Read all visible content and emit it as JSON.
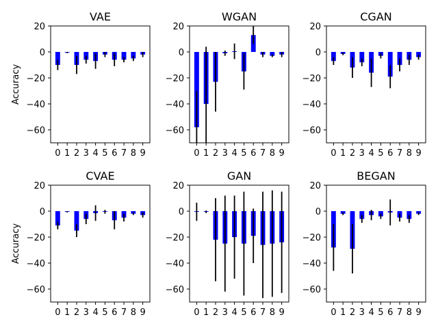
{
  "figure": {
    "name": "accuracy-bar-grid"
  },
  "chart_data": [
    {
      "type": "bar",
      "title": "VAE",
      "ylabel": "Accuracy",
      "xlabel": "",
      "ylim": [
        -70,
        20
      ],
      "yticks": [
        20,
        0,
        -20,
        -40,
        -60
      ],
      "categories": [
        "0",
        "1",
        "2",
        "3",
        "4",
        "5",
        "6",
        "7",
        "8",
        "9"
      ],
      "values": [
        -10,
        -0.5,
        -10,
        -6,
        -7,
        -2,
        -6,
        -6,
        -5,
        -2
      ],
      "error": [
        4,
        0.5,
        7,
        3,
        6,
        2,
        5,
        2,
        2,
        2
      ],
      "bar_color": "#0000ff",
      "error_color": "#000000"
    },
    {
      "type": "bar",
      "title": "WGAN",
      "ylabel": "",
      "xlabel": "",
      "ylim": [
        -70,
        20
      ],
      "yticks": [
        20,
        0,
        -20,
        -40,
        -60
      ],
      "categories": [
        "0",
        "1",
        "2",
        "3",
        "4",
        "5",
        "6",
        "7",
        "8",
        "9"
      ],
      "values": [
        -58,
        -40,
        -23,
        -1,
        0.5,
        -15,
        13,
        -2,
        -3,
        -2
      ],
      "error": [
        28,
        44,
        23,
        2,
        6,
        14,
        7,
        2,
        1,
        2
      ],
      "bar_color": "#0000ff",
      "error_color": "#000000"
    },
    {
      "type": "bar",
      "title": "CGAN",
      "ylabel": "",
      "xlabel": "",
      "ylim": [
        -70,
        20
      ],
      "yticks": [
        20,
        0,
        -20,
        -40,
        -60
      ],
      "categories": [
        "0",
        "1",
        "2",
        "3",
        "4",
        "5",
        "6",
        "7",
        "8",
        "9"
      ],
      "values": [
        -7,
        -1.5,
        -12,
        -8,
        -16,
        -3,
        -19,
        -10,
        -6,
        -4
      ],
      "error": [
        3,
        1,
        8,
        3,
        11,
        2,
        9,
        5,
        4,
        2
      ],
      "bar_color": "#0000ff",
      "error_color": "#000000"
    },
    {
      "type": "bar",
      "title": "CVAE",
      "ylabel": "Accuracy",
      "xlabel": "",
      "ylim": [
        -70,
        20
      ],
      "yticks": [
        20,
        0,
        -20,
        -40,
        -60
      ],
      "categories": [
        "0",
        "1",
        "2",
        "3",
        "4",
        "5",
        "6",
        "7",
        "8",
        "9"
      ],
      "values": [
        -11,
        -0.5,
        -15,
        -6,
        -1.5,
        -0.5,
        -7,
        -5,
        -2,
        -3
      ],
      "error": [
        3,
        0.5,
        5,
        4,
        6,
        1.5,
        7,
        3,
        1,
        2
      ],
      "bar_color": "#0000ff",
      "error_color": "#000000"
    },
    {
      "type": "bar",
      "title": "GAN",
      "ylabel": "",
      "xlabel": "",
      "ylim": [
        -70,
        20
      ],
      "yticks": [
        20,
        0,
        -20,
        -40,
        -60
      ],
      "categories": [
        "0",
        "1",
        "2",
        "3",
        "4",
        "5",
        "6",
        "7",
        "8",
        "9"
      ],
      "values": [
        -0.5,
        -0.5,
        -22,
        -25,
        -20,
        -25,
        -19,
        -26,
        -25,
        -24
      ],
      "error": [
        7,
        1,
        32,
        37,
        32,
        40,
        21,
        41,
        41,
        39
      ],
      "bar_color": "#0000ff",
      "error_color": "#000000"
    },
    {
      "type": "bar",
      "title": "BEGAN",
      "ylabel": "",
      "xlabel": "",
      "ylim": [
        -70,
        20
      ],
      "yticks": [
        20,
        0,
        -20,
        -40,
        -60
      ],
      "categories": [
        "0",
        "1",
        "2",
        "3",
        "4",
        "5",
        "6",
        "7",
        "8",
        "9"
      ],
      "values": [
        -28,
        -2,
        -29,
        -6,
        -3,
        -4,
        -1,
        -5,
        -6,
        -2
      ],
      "error": [
        18,
        1,
        19,
        3,
        4,
        2,
        10,
        3,
        3,
        1
      ],
      "bar_color": "#0000ff",
      "error_color": "#000000"
    }
  ]
}
